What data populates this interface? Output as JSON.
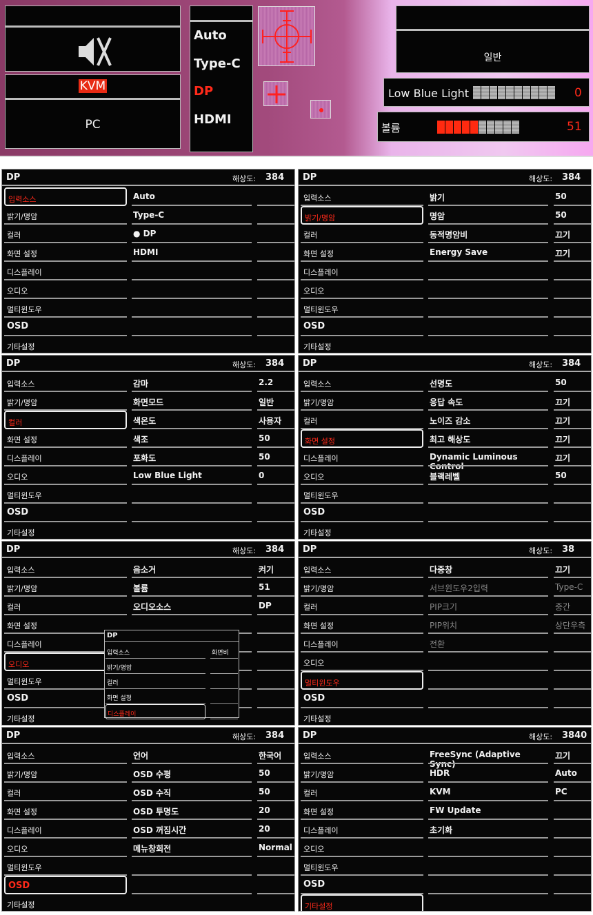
{
  "top": {
    "mute_icon": "speaker-mute-icon",
    "kvm_label": "KVM",
    "kvm_value": "PC",
    "sources": [
      "Auto",
      "Type-C",
      "DP",
      "HDMI"
    ],
    "selected_source": "DP",
    "picture_mode": "일반",
    "low_blue_light": {
      "label": "Low Blue Light",
      "value": "0",
      "level": 0
    },
    "volume": {
      "label": "볼륨",
      "value": "51",
      "level": 51
    },
    "accent": "#ff2a1a"
  },
  "sidebar": [
    "입력소스",
    "밝기/명암",
    "컬러",
    "화면 설정",
    "디스플레이",
    "오디오",
    "멀티윈도우",
    "OSD",
    "기타설정"
  ],
  "header": {
    "source": "DP",
    "resolution_label": "해상도:"
  },
  "panels": [
    {
      "selected": 0,
      "resolution": "384",
      "items": [
        {
          "label": "Auto",
          "value": ""
        },
        {
          "label": "Type-C",
          "value": ""
        },
        {
          "label": "● DP",
          "value": ""
        },
        {
          "label": "HDMI",
          "value": ""
        }
      ]
    },
    {
      "selected": 1,
      "resolution": "384",
      "items": [
        {
          "label": "밝기",
          "value": "50"
        },
        {
          "label": "명암",
          "value": "50"
        },
        {
          "label": "동적명암비",
          "value": "끄기"
        },
        {
          "label": "Energy Save",
          "value": "끄기"
        }
      ]
    },
    {
      "selected": 2,
      "resolution": "384",
      "items": [
        {
          "label": "감마",
          "value": "2.2"
        },
        {
          "label": "화면모드",
          "value": "일반"
        },
        {
          "label": "색온도",
          "value": "사용자"
        },
        {
          "label": "색조",
          "value": "50"
        },
        {
          "label": "포화도",
          "value": "50"
        },
        {
          "label": "Low Blue Light",
          "value": "0"
        }
      ]
    },
    {
      "selected": 3,
      "resolution": "384",
      "items": [
        {
          "label": "선명도",
          "value": "50"
        },
        {
          "label": "응답 속도",
          "value": "끄기"
        },
        {
          "label": "노이즈 감소",
          "value": "끄기"
        },
        {
          "label": "최고 해상도",
          "value": "끄기"
        },
        {
          "label": "Dynamic Luminous Control",
          "value": "끄기"
        },
        {
          "label": "블랙레벨",
          "value": "50"
        }
      ]
    },
    {
      "selected": 5,
      "resolution": "384",
      "items": [
        {
          "label": "음소거",
          "value": "켜기"
        },
        {
          "label": "볼륨",
          "value": "51"
        },
        {
          "label": "오디오소스",
          "value": "DP"
        }
      ],
      "overlay": {
        "title": "DP",
        "items": [
          "입력소스",
          "밝기/명암",
          "컬러",
          "화면 설정",
          "디스플레이"
        ],
        "selected": 4,
        "value_label": "화면비"
      }
    },
    {
      "selected": 6,
      "resolution": "38",
      "items": [
        {
          "label": "다중창",
          "value": "끄기"
        },
        {
          "label": "서브윈도우2입력",
          "value": "Type-C",
          "disabled": true
        },
        {
          "label": "PIP크기",
          "value": "중간",
          "disabled": true
        },
        {
          "label": "PIP위치",
          "value": "상단우측",
          "disabled": true
        },
        {
          "label": "전환",
          "value": "",
          "disabled": true
        }
      ]
    },
    {
      "selected": 7,
      "resolution": "384",
      "items": [
        {
          "label": "언어",
          "value": "한국어"
        },
        {
          "label": "OSD 수평",
          "value": "50"
        },
        {
          "label": "OSD 수직",
          "value": "50"
        },
        {
          "label": "OSD 투명도",
          "value": "20"
        },
        {
          "label": "OSD 꺼짐시간",
          "value": "20"
        },
        {
          "label": "메뉴창회전",
          "value": "Normal"
        }
      ]
    },
    {
      "selected": 8,
      "resolution": "3840",
      "items": [
        {
          "label": "FreeSync (Adaptive Sync)",
          "value": "끄기"
        },
        {
          "label": "HDR",
          "value": "Auto"
        },
        {
          "label": "KVM",
          "value": "PC"
        },
        {
          "label": "FW Update",
          "value": ""
        },
        {
          "label": "초기화",
          "value": ""
        }
      ]
    }
  ]
}
